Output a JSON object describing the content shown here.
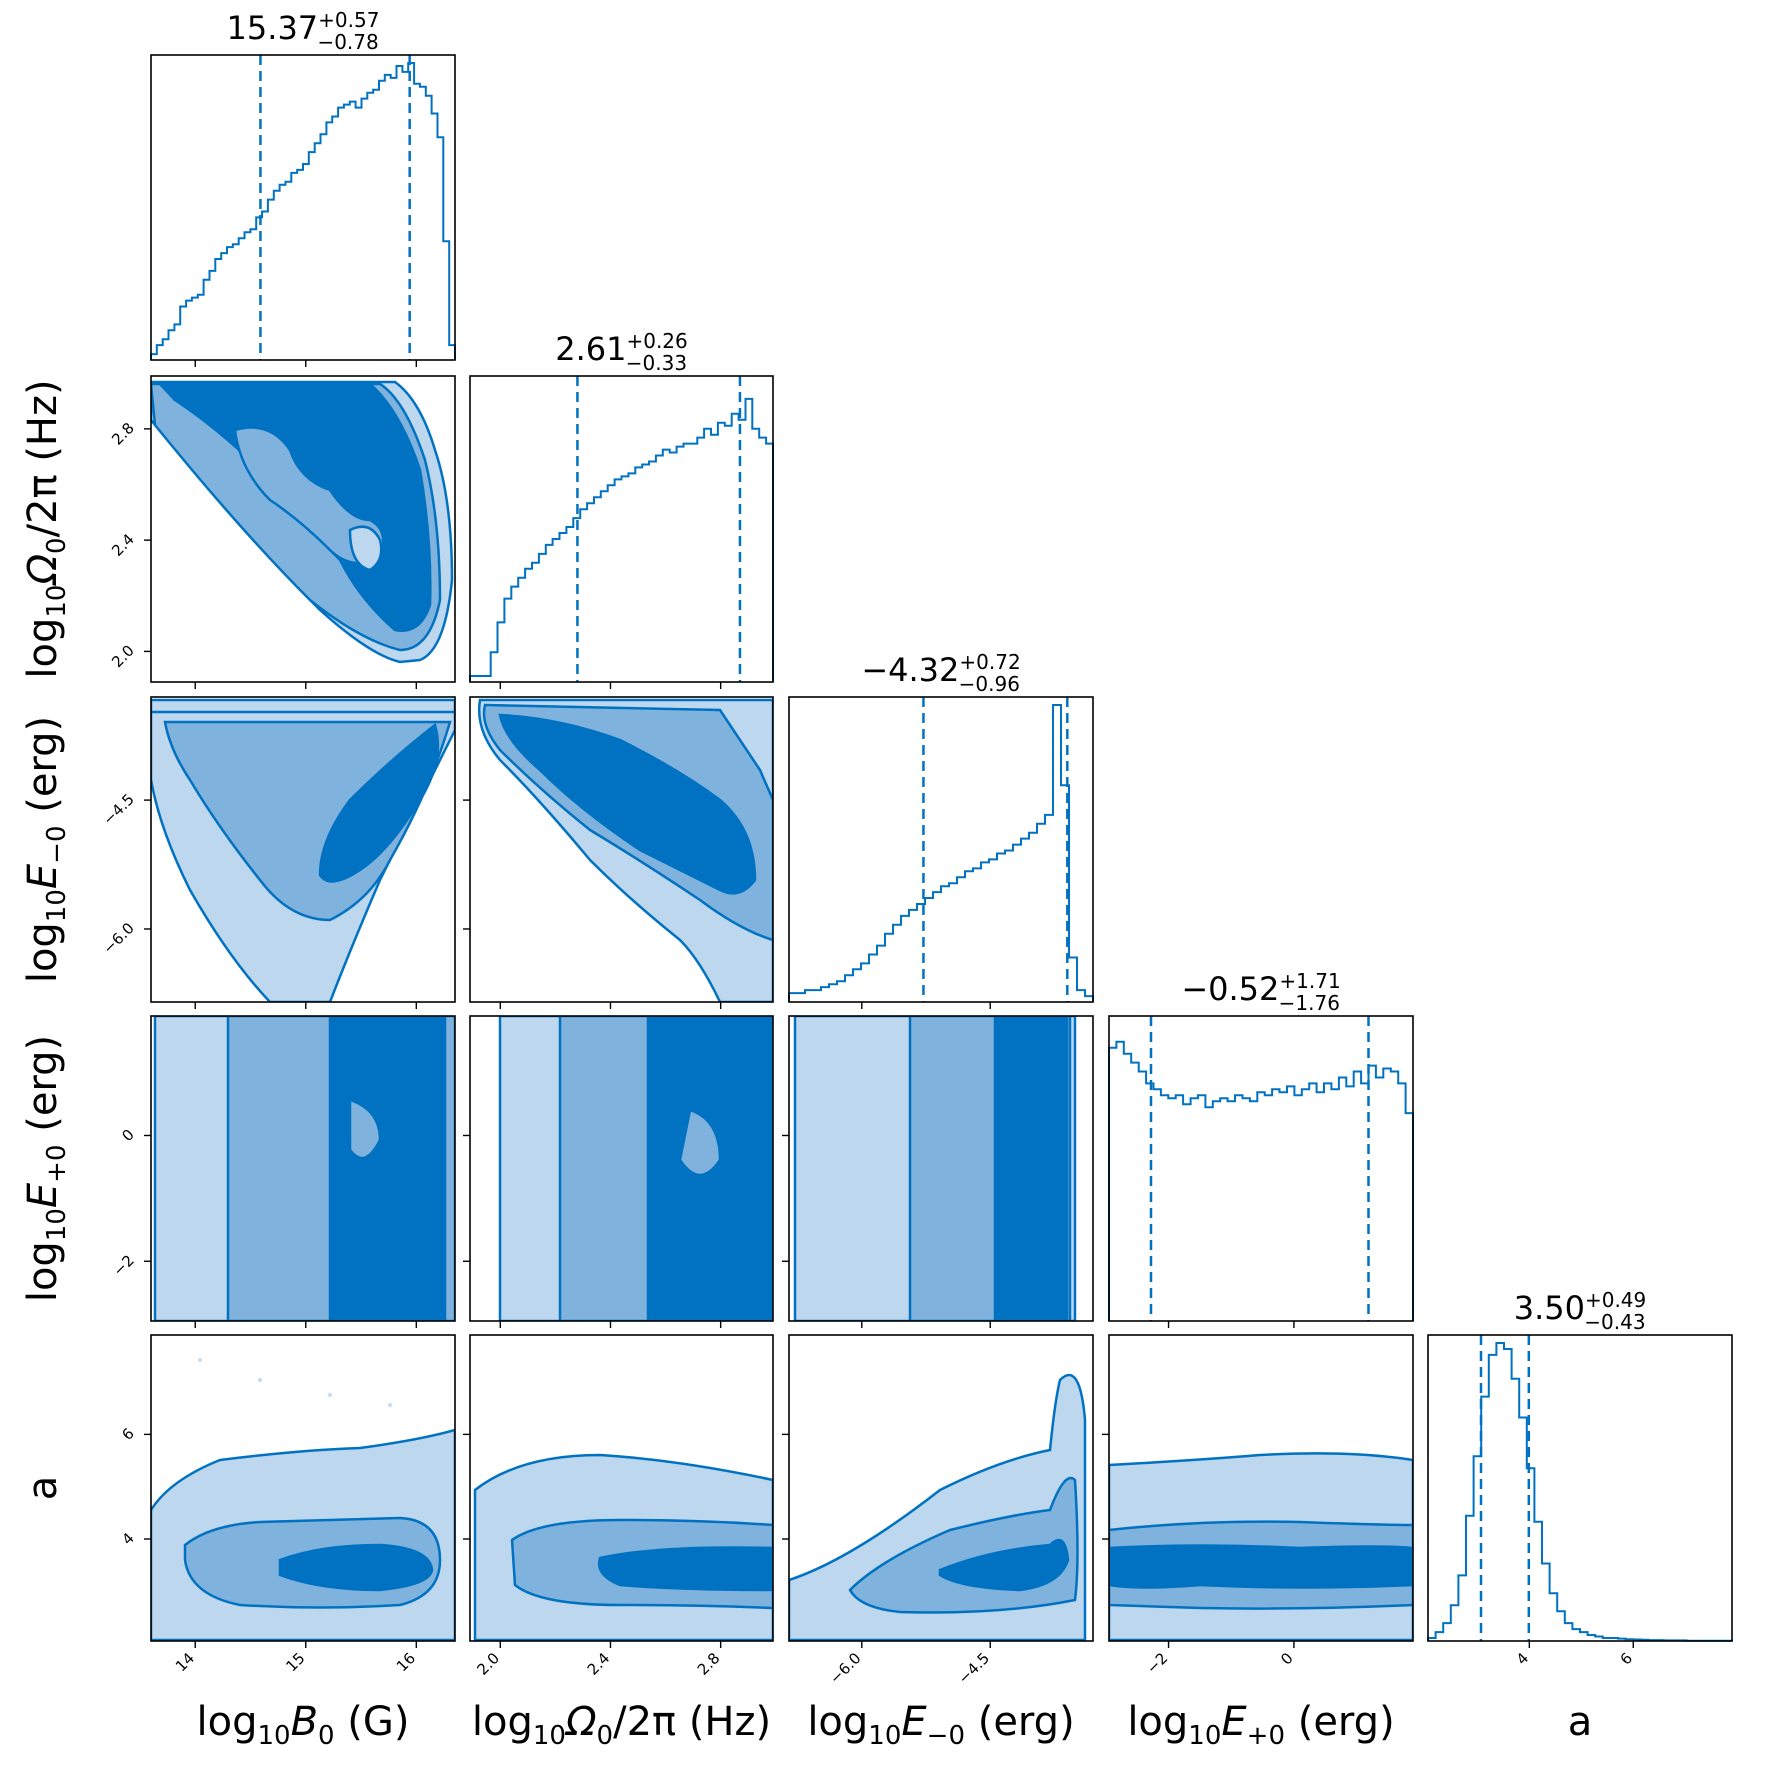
{
  "colors": {
    "main": "#0072c1",
    "level1": "#bdd7ee",
    "level2": "#7fb2dc",
    "level3": "#0072c1"
  },
  "chart_data": {
    "type": "corner",
    "parameters": [
      {
        "key": "B0",
        "label": "log10B0 (G)",
        "label_parts": [
          "log",
          "10",
          "B",
          "0",
          " (G)"
        ],
        "range": [
          13.6,
          16.35
        ],
        "ticks": [
          14,
          15,
          16
        ],
        "tick_labels": [
          "14",
          "15",
          "16"
        ],
        "summary": {
          "median": "15.37",
          "plus": "+0.57",
          "minus": "−0.78"
        },
        "q16": 14.59,
        "q84": 15.94
      },
      {
        "key": "Om0",
        "label": "log10Ω0/2π (Hz)",
        "label_parts": [
          "log",
          "10",
          "Ω",
          "0",
          "/2π (Hz)"
        ],
        "range": [
          1.89,
          2.99
        ],
        "ticks": [
          2.0,
          2.4,
          2.8
        ],
        "tick_labels": [
          "2.0",
          "2.4",
          "2.8"
        ],
        "summary": {
          "median": "2.61",
          "plus": "+0.26",
          "minus": "−0.33"
        },
        "q16": 2.28,
        "q84": 2.87
      },
      {
        "key": "Em0",
        "label": "log10E−0 (erg)",
        "label_parts": [
          "log",
          "10",
          "E",
          "−0",
          " (erg)"
        ],
        "range": [
          -6.85,
          -3.3
        ],
        "ticks": [
          -6.0,
          -4.5
        ],
        "tick_labels": [
          "−6.0",
          "−4.5"
        ],
        "summary": {
          "median": "−4.32",
          "plus": "+0.72",
          "minus": "−0.96"
        },
        "q16": -5.28,
        "q84": -3.6
      },
      {
        "key": "Ep0",
        "label": "log10E+0 (erg)",
        "label_parts": [
          "log",
          "10",
          "E",
          "+0",
          " (erg)"
        ],
        "range": [
          -2.95,
          1.9
        ],
        "ticks": [
          -2,
          0
        ],
        "tick_labels": [
          "−2",
          "0"
        ],
        "summary": {
          "median": "−0.52",
          "plus": "+1.71",
          "minus": "−1.76"
        },
        "q16": -2.28,
        "q84": 1.19
      },
      {
        "key": "a",
        "label": "a",
        "label_parts": [
          "a",
          "",
          "",
          "",
          ""
        ],
        "range": [
          2.05,
          7.9
        ],
        "ticks": [
          4,
          6
        ],
        "tick_labels": [
          "4",
          "6"
        ],
        "summary": {
          "median": "3.50",
          "plus": "+0.49",
          "minus": "−0.43"
        },
        "q16": 3.07,
        "q84": 3.99
      }
    ],
    "histograms": [
      [
        0.02,
        0.05,
        0.07,
        0.1,
        0.12,
        0.18,
        0.2,
        0.21,
        0.22,
        0.27,
        0.3,
        0.34,
        0.36,
        0.38,
        0.39,
        0.41,
        0.43,
        0.44,
        0.48,
        0.5,
        0.54,
        0.57,
        0.59,
        0.6,
        0.63,
        0.64,
        0.66,
        0.7,
        0.73,
        0.76,
        0.8,
        0.82,
        0.85,
        0.86,
        0.87,
        0.85,
        0.88,
        0.9,
        0.91,
        0.94,
        0.96,
        0.95,
        0.99,
        0.97,
        1.0,
        0.93,
        0.92,
        0.89,
        0.83,
        0.75,
        0.4,
        0.05
      ],
      [
        0.02,
        0.02,
        0.02,
        0.1,
        0.2,
        0.28,
        0.32,
        0.35,
        0.38,
        0.4,
        0.43,
        0.46,
        0.48,
        0.5,
        0.52,
        0.55,
        0.58,
        0.6,
        0.62,
        0.64,
        0.66,
        0.68,
        0.69,
        0.7,
        0.72,
        0.73,
        0.74,
        0.76,
        0.78,
        0.77,
        0.79,
        0.8,
        0.8,
        0.82,
        0.85,
        0.83,
        0.87,
        0.86,
        0.9,
        0.88,
        0.95,
        0.85,
        0.82,
        0.8
      ],
      [
        0.03,
        0.03,
        0.04,
        0.04,
        0.05,
        0.06,
        0.07,
        0.09,
        0.11,
        0.13,
        0.16,
        0.19,
        0.23,
        0.26,
        0.29,
        0.31,
        0.33,
        0.35,
        0.37,
        0.39,
        0.4,
        0.42,
        0.44,
        0.45,
        0.47,
        0.48,
        0.5,
        0.51,
        0.53,
        0.55,
        0.57,
        0.6,
        0.63,
        1.0,
        0.73,
        0.15,
        0.04,
        0.02
      ],
      [
        0.92,
        0.94,
        0.9,
        0.87,
        0.84,
        0.8,
        0.78,
        0.76,
        0.75,
        0.76,
        0.73,
        0.75,
        0.76,
        0.72,
        0.74,
        0.75,
        0.74,
        0.76,
        0.75,
        0.74,
        0.77,
        0.76,
        0.78,
        0.77,
        0.79,
        0.76,
        0.78,
        0.8,
        0.77,
        0.8,
        0.78,
        0.82,
        0.79,
        0.84,
        0.8,
        0.86,
        0.82,
        0.85,
        0.84,
        0.8,
        0.7
      ],
      [
        0.01,
        0.03,
        0.06,
        0.12,
        0.22,
        0.42,
        0.62,
        0.82,
        0.96,
        1.0,
        0.98,
        0.88,
        0.75,
        0.58,
        0.4,
        0.26,
        0.16,
        0.1,
        0.06,
        0.04,
        0.03,
        0.02,
        0.015,
        0.01,
        0.01,
        0.008,
        0.006,
        0.005,
        0.004,
        0.003,
        0.003,
        0.002,
        0.002,
        0.002,
        0.001,
        0.001,
        0.001,
        0.001,
        0.001,
        0.001
      ]
    ],
    "contour_levels": [
      "outer",
      "middle",
      "inner"
    ]
  }
}
